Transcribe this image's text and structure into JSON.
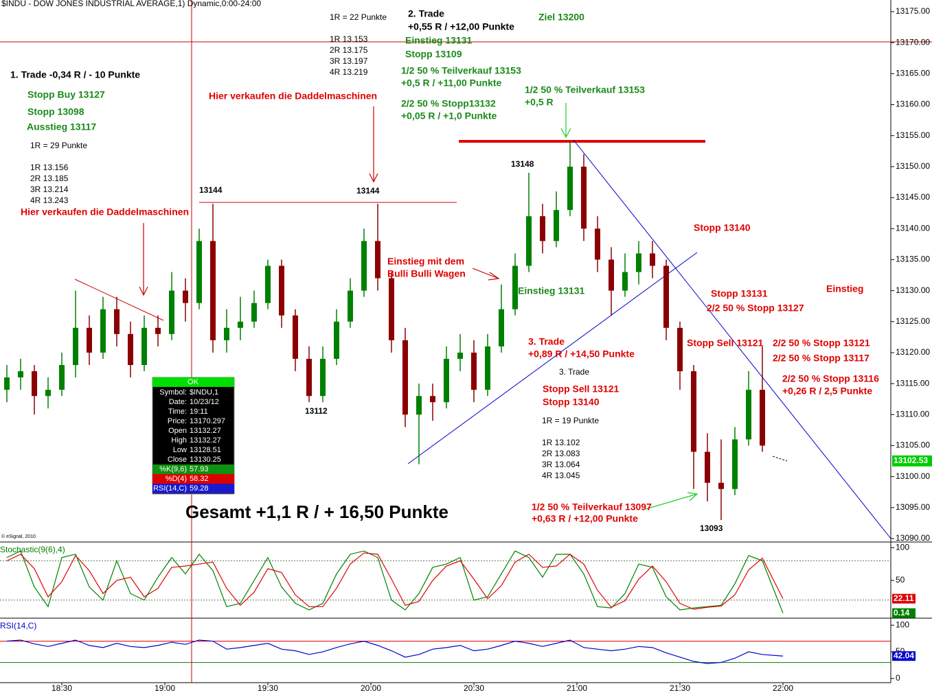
{
  "header": "$INDU - DOW JONES INDUSTRIAL AVERAGE,1) Dynamic,0:00-24:00",
  "copyright": "© eSignal, 2010",
  "chart_data": [
    {
      "type": "candlestick",
      "up_color": "#008000",
      "down_color": "#8b0000",
      "x": [
        "18:14",
        "18:18",
        "18:22",
        "18:26",
        "18:30",
        "18:34",
        "18:38",
        "18:42",
        "18:46",
        "18:50",
        "18:54",
        "18:58",
        "19:02",
        "19:06",
        "19:10",
        "19:14",
        "19:18",
        "19:22",
        "19:26",
        "19:30",
        "19:34",
        "19:38",
        "19:42",
        "19:46",
        "19:50",
        "19:54",
        "19:58",
        "20:02",
        "20:06",
        "20:10",
        "20:14",
        "20:18",
        "20:22",
        "20:26",
        "20:30",
        "20:34",
        "20:38",
        "20:42",
        "20:46",
        "20:50",
        "20:54",
        "20:58",
        "21:02",
        "21:06",
        "21:10",
        "21:14",
        "21:18",
        "21:22",
        "21:26",
        "21:30",
        "21:34",
        "21:38",
        "21:42",
        "21:46",
        "21:50",
        "21:54"
      ],
      "open": [
        13114,
        13116,
        13117,
        13113,
        13114,
        13118,
        13124,
        13120,
        13127,
        13123,
        13118,
        13124,
        13123,
        13130,
        13128,
        13138,
        13122,
        13124,
        13125,
        13128,
        13134,
        13126,
        13119,
        13113,
        13119,
        13125,
        13130,
        13138,
        13132,
        13122,
        13110,
        13113,
        13112,
        13119,
        13120,
        13114,
        13121,
        13127,
        13134,
        13142,
        13138,
        13143,
        13150,
        13140,
        13135,
        13130,
        13133,
        13136,
        13134,
        13124,
        13117,
        13104,
        13099,
        13098,
        13106,
        13114
      ],
      "high": [
        13118,
        13119,
        13118,
        13116,
        13120,
        13130,
        13126,
        13129,
        13129,
        13125,
        13126,
        13126,
        13133,
        13132,
        13140,
        13144,
        13127,
        13129,
        13130,
        13135,
        13135,
        13127,
        13121,
        13121,
        13127,
        13132,
        13140,
        13144,
        13133,
        13124,
        13115,
        13115,
        13121,
        13123,
        13122,
        13123,
        13131,
        13136,
        13149,
        13144,
        13146,
        13154,
        13152,
        13142,
        13137,
        13136,
        13138,
        13138,
        13135,
        13125,
        13118,
        13107,
        13106,
        13108,
        13117,
        13121
      ],
      "low": [
        13112,
        13114,
        13110,
        13111,
        13113,
        13116,
        13118,
        13119,
        13121,
        13116,
        13117,
        13121,
        13122,
        13125,
        13127,
        13120,
        13120,
        13122,
        13124,
        13127,
        13124,
        13117,
        13112,
        13112,
        13118,
        13124,
        13129,
        13130,
        13120,
        13108,
        13102,
        13109,
        13111,
        13117,
        13112,
        13113,
        13120,
        13126,
        13133,
        13136,
        13137,
        13142,
        13138,
        13133,
        13126,
        13129,
        13131,
        13132,
        13122,
        13114,
        13098,
        13096,
        13093,
        13097,
        13105,
        13104
      ],
      "close": [
        13116,
        13117,
        13113,
        13114,
        13118,
        13124,
        13120,
        13127,
        13123,
        13118,
        13124,
        13123,
        13130,
        13128,
        13138,
        13122,
        13124,
        13125,
        13128,
        13134,
        13126,
        13119,
        13113,
        13119,
        13125,
        13130,
        13138,
        13132,
        13122,
        13110,
        13113,
        13112,
        13119,
        13120,
        13114,
        13121,
        13127,
        13134,
        13142,
        13138,
        13143,
        13150,
        13140,
        13135,
        13130,
        13133,
        13136,
        13134,
        13124,
        13117,
        13104,
        13099,
        13098,
        13106,
        13114,
        13105
      ],
      "last_price": 13102.53,
      "ylim": [
        13089.45,
        13176.88
      ],
      "yticks": [
        {
          "value": 13090,
          "label": "13090.00"
        },
        {
          "value": 13095,
          "label": "13095.00"
        },
        {
          "value": 13100,
          "label": "13100.00"
        },
        {
          "value": 13105,
          "label": "13105.00"
        },
        {
          "value": 13110,
          "label": "13110.00"
        },
        {
          "value": 13115,
          "label": "13115.00"
        },
        {
          "value": 13120,
          "label": "13120.00"
        },
        {
          "value": 13125,
          "label": "13125.00"
        },
        {
          "value": 13130,
          "label": "13130.00"
        },
        {
          "value": 13135,
          "label": "13135.00"
        },
        {
          "value": 13140,
          "label": "13140.00"
        },
        {
          "value": 13145,
          "label": "13145.00"
        },
        {
          "value": 13150,
          "label": "13150.00"
        },
        {
          "value": 13155,
          "label": "13155.00"
        },
        {
          "value": 13160,
          "label": "13160.00"
        },
        {
          "value": 13165,
          "label": "13165.00"
        },
        {
          "value": 13170,
          "label": "13170.00"
        },
        {
          "value": 13175,
          "label": "13175.00"
        }
      ]
    },
    {
      "type": "line",
      "title": "Stochastic(9(6),4)",
      "title_color": "#008000",
      "x": [
        "18:14",
        "18:18",
        "18:22",
        "18:26",
        "18:30",
        "18:34",
        "18:38",
        "18:42",
        "18:46",
        "18:50",
        "18:54",
        "18:58",
        "19:02",
        "19:06",
        "19:10",
        "19:14",
        "19:18",
        "19:22",
        "19:26",
        "19:30",
        "19:34",
        "19:38",
        "19:42",
        "19:46",
        "19:50",
        "19:54",
        "19:58",
        "20:02",
        "20:06",
        "20:10",
        "20:14",
        "20:18",
        "20:22",
        "20:26",
        "20:30",
        "20:34",
        "20:38",
        "20:42",
        "20:46",
        "20:50",
        "20:54",
        "20:58",
        "21:02",
        "21:06",
        "21:10",
        "21:14",
        "21:18",
        "21:22",
        "21:26",
        "21:30",
        "21:34",
        "21:38",
        "21:42",
        "21:46",
        "21:50",
        "21:54",
        "22:00"
      ],
      "series": [
        {
          "color": "#008000",
          "values": [
            85,
            95,
            40,
            10,
            85,
            90,
            40,
            20,
            80,
            30,
            20,
            55,
            85,
            60,
            90,
            65,
            10,
            15,
            50,
            85,
            40,
            15,
            5,
            15,
            60,
            90,
            95,
            85,
            20,
            5,
            30,
            70,
            75,
            85,
            20,
            25,
            60,
            95,
            85,
            55,
            90,
            90,
            60,
            10,
            8,
            30,
            75,
            70,
            25,
            5,
            8,
            10,
            12,
            45,
            88,
            80,
            0.14
          ]
        },
        {
          "color": "#e00000",
          "values": [
            80,
            90,
            68,
            25,
            48,
            88,
            65,
            30,
            50,
            55,
            25,
            38,
            70,
            72,
            75,
            78,
            38,
            12,
            32,
            68,
            62,
            28,
            10,
            10,
            38,
            75,
            92,
            90,
            52,
            12,
            18,
            50,
            72,
            80,
            52,
            22,
            42,
            78,
            90,
            70,
            72,
            90,
            75,
            35,
            9,
            19,
            52,
            72,
            48,
            15,
            6,
            9,
            11,
            28,
            66,
            84,
            22.11
          ]
        }
      ],
      "ref_lines": [
        {
          "value": 80,
          "color": "#557755"
        },
        {
          "value": 20,
          "color": "#557755"
        }
      ],
      "ylim": [
        -7.6,
        108.7
      ],
      "yticks": [
        50,
        100
      ]
    },
    {
      "type": "line",
      "title": "RSI(14,C)",
      "title_color": "#0000cc",
      "x": [
        "18:14",
        "18:18",
        "18:22",
        "18:26",
        "18:30",
        "18:34",
        "18:38",
        "18:42",
        "18:46",
        "18:50",
        "18:54",
        "18:58",
        "19:02",
        "19:06",
        "19:10",
        "19:14",
        "19:18",
        "19:22",
        "19:26",
        "19:30",
        "19:34",
        "19:38",
        "19:42",
        "19:46",
        "19:50",
        "19:54",
        "19:58",
        "20:02",
        "20:06",
        "20:10",
        "20:14",
        "20:18",
        "20:22",
        "20:26",
        "20:30",
        "20:34",
        "20:38",
        "20:42",
        "20:46",
        "20:50",
        "20:54",
        "20:58",
        "21:02",
        "21:06",
        "21:10",
        "21:14",
        "21:18",
        "21:22",
        "21:26",
        "21:30",
        "21:34",
        "21:38",
        "21:42",
        "21:46",
        "21:50",
        "21:54",
        "22:00"
      ],
      "series": [
        {
          "color": "#0000cc",
          "values": [
            70,
            72,
            65,
            60,
            66,
            72,
            62,
            58,
            66,
            60,
            58,
            62,
            68,
            64,
            72,
            70,
            55,
            58,
            62,
            66,
            55,
            52,
            45,
            50,
            58,
            65,
            70,
            62,
            52,
            40,
            45,
            55,
            58,
            62,
            52,
            55,
            62,
            70,
            66,
            60,
            66,
            72,
            58,
            55,
            52,
            55,
            60,
            58,
            48,
            40,
            32,
            28,
            30,
            38,
            50,
            45,
            42.04
          ]
        }
      ],
      "ref_lines": [
        {
          "value": 70,
          "color": "#e00000"
        },
        {
          "value": 30,
          "color": "#008000"
        }
      ],
      "ylim": [
        -7.9,
        113.2
      ],
      "yticks": [
        0,
        50,
        100
      ],
      "xticks": [
        "18:30",
        "19:00",
        "19:30",
        "20:00",
        "20:30",
        "21:00",
        "21:30",
        "22:00"
      ]
    }
  ],
  "info_box": {
    "header": "OK",
    "rows": [
      [
        "Symbol:",
        "$INDU,1"
      ],
      [
        "Date:",
        "10/23/12"
      ],
      [
        "Time:",
        "19:11"
      ],
      [
        "Price:",
        "13170.297"
      ],
      [
        "Open",
        "13132.27"
      ],
      [
        "High",
        "13132.27"
      ],
      [
        "Low",
        "13128.51"
      ],
      [
        "Close",
        "13130.25"
      ],
      [
        "%K(9,6)",
        "57.93"
      ],
      [
        "%D(4)",
        "58.32"
      ],
      [
        "RSI(14,C)",
        "59.28"
      ]
    ]
  },
  "annotations": [
    {
      "text": "1. Trade -0,34 R / - 10 Punkte",
      "color": "#000000"
    },
    {
      "text": "Stopp Buy 13127",
      "color": "#1a8a1a"
    },
    {
      "text": "Stopp 13098",
      "color": "#1a8a1a"
    },
    {
      "text": "Ausstieg 13117",
      "color": "#1a8a1a"
    },
    {
      "text": "1R = 29 Punkte",
      "color": "#000000"
    },
    {
      "text": "1R 13.156",
      "color": "#000000"
    },
    {
      "text": "2R 13.185",
      "color": "#000000"
    },
    {
      "text": "3R 13.214",
      "color": "#000000"
    },
    {
      "text": "4R 13.243",
      "color": "#000000"
    },
    {
      "text": "Hier verkaufen die Daddelmaschinen",
      "color": "#e00000"
    },
    {
      "text": "13144",
      "color": "#000000"
    },
    {
      "text": "1R = 22 Punkte",
      "color": "#000000"
    },
    {
      "text": "1R 13.153",
      "color": "#000000"
    },
    {
      "text": "2R 13.175",
      "color": "#000000"
    },
    {
      "text": "3R 13.197",
      "color": "#000000"
    },
    {
      "text": "4R 13.219",
      "color": "#000000"
    },
    {
      "text": "2. Trade",
      "color": "#000000"
    },
    {
      "text": "+0,55 R / +12,00 Punkte",
      "color": "#000000"
    },
    {
      "text": "Ziel 13200",
      "color": "#1a8a1a"
    },
    {
      "text": "Einstieg 13131",
      "color": "#1a8a1a"
    },
    {
      "text": "Stopp 13109",
      "color": "#1a8a1a"
    },
    {
      "text": "1/2 50 % Teilverkauf 13153",
      "color": "#1a8a1a"
    },
    {
      "text": "+0,5 R / +11,00 Punkte",
      "color": "#1a8a1a"
    },
    {
      "text": "2/2 50 % Stopp13132",
      "color": "#1a8a1a"
    },
    {
      "text": "+0,05 R / +1,0 Punkte",
      "color": "#1a8a1a"
    },
    {
      "text": "Hier verkaufen die Daddelmaschinen",
      "color": "#e00000"
    },
    {
      "text": "1/2 50 % Teilverkauf 13153",
      "color": "#1a8a1a"
    },
    {
      "text": "+0,5 R",
      "color": "#1a8a1a"
    },
    {
      "text": "13148",
      "color": "#000000"
    },
    {
      "text": "13144",
      "color": "#000000"
    },
    {
      "text": "Stopp 13140",
      "color": "#e00000"
    },
    {
      "text": "Einstieg mit dem",
      "color": "#e00000"
    },
    {
      "text": "Bulli Bulli Wagen",
      "color": "#e00000"
    },
    {
      "text": "Einstieg 13131",
      "color": "#1a8a1a"
    },
    {
      "text": "Stopp 13131",
      "color": "#e00000"
    },
    {
      "text": "2/2 50 % Stopp 13127",
      "color": "#e00000"
    },
    {
      "text": "Einstieg",
      "color": "#e00000"
    },
    {
      "text": "3. Trade",
      "color": "#e00000"
    },
    {
      "text": "+0,89 R / +14,50 Punkte",
      "color": "#e00000"
    },
    {
      "text": "Stopp Sell 13121",
      "color": "#e00000"
    },
    {
      "text": "2/2 50 % Stopp 13121",
      "color": "#e00000"
    },
    {
      "text": "2/2 50 % Stopp 13117",
      "color": "#e00000"
    },
    {
      "text": "3. Trade",
      "color": "#000000"
    },
    {
      "text": "2/2 50 % Stopp 13116",
      "color": "#e00000"
    },
    {
      "text": "+0,26 R / 2,5 Punkte",
      "color": "#e00000"
    },
    {
      "text": "Stopp Sell 13121",
      "color": "#e00000"
    },
    {
      "text": "Stopp 13140",
      "color": "#e00000"
    },
    {
      "text": "13112",
      "color": "#000000"
    },
    {
      "text": "1R = 19 Punkte",
      "color": "#000000"
    },
    {
      "text": "1R 13.102",
      "color": "#000000"
    },
    {
      "text": "2R 13.083",
      "color": "#000000"
    },
    {
      "text": "3R 13.064",
      "color": "#000000"
    },
    {
      "text": "4R 13.045",
      "color": "#000000"
    },
    {
      "text": "Gesamt +1,1 R / + 16,50 Punkte",
      "color": "#000000"
    },
    {
      "text": "1/2 50 % Teilverkauf 13097",
      "color": "#e00000"
    },
    {
      "text": "+0,63 R / +12,00 Punkte",
      "color": "#e00000"
    },
    {
      "text": "13093",
      "color": "#000000"
    }
  ]
}
